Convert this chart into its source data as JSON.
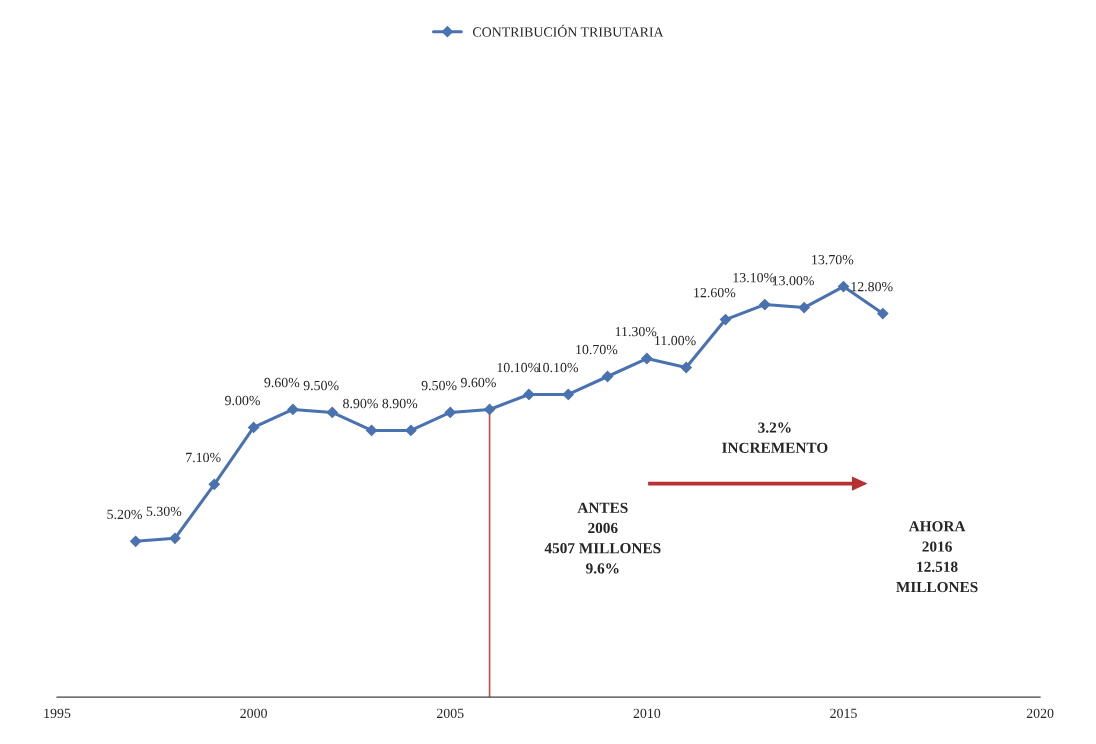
{
  "chart_data": {
    "type": "line",
    "x": [
      1997,
      1998,
      1999,
      2000,
      2001,
      2002,
      2003,
      2004,
      2005,
      2006,
      2007,
      2008,
      2009,
      2010,
      2011,
      2012,
      2013,
      2014,
      2015,
      2016
    ],
    "series": [
      {
        "name": "CONTRIBUCIÓN TRIBUTARIA",
        "color": "#4a72b0",
        "values": [
          5.2,
          5.3,
          7.1,
          9.0,
          9.6,
          9.5,
          8.9,
          8.9,
          9.5,
          9.6,
          10.1,
          10.1,
          10.7,
          11.3,
          11.0,
          12.6,
          13.1,
          13.0,
          13.7,
          12.8
        ],
        "value_labels": [
          "5.20%",
          "5.30%",
          "7.10%",
          "9.00%",
          "9.60%",
          "9.50%",
          "8.90%",
          "8.90%",
          "9.50%",
          "9.60%",
          "10.10%",
          "10.10%",
          "10.70%",
          "11.30%",
          "11.00%",
          "12.60%",
          "13.10%",
          "13.00%",
          "13.70%",
          "12.80%"
        ]
      }
    ],
    "xlim": [
      1995,
      2020
    ],
    "xticks": [
      1995,
      2000,
      2005,
      2010,
      2015,
      2020
    ],
    "marker": "diamond",
    "line_style": "solid",
    "legend": "top",
    "grid": false,
    "ref_lines": [
      {
        "axis": "x",
        "value": 2006,
        "color": "#c0504d"
      }
    ],
    "annotations": [
      "3.2%\nINCREMENTO",
      "ANTES\n2006\n4507 MILLONES\n9.6%",
      "AHORA\n2016\n12.518\nMILLONES"
    ]
  }
}
